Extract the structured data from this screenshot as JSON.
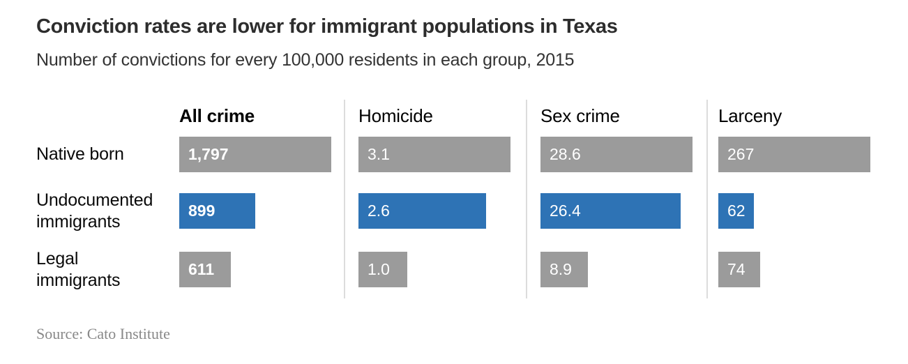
{
  "page": {
    "title": "Conviction rates are lower for immigrant populations in Texas",
    "subtitle": "Number of convictions for every 100,000 residents in each group, 2015",
    "source": "Source: Cato Institute"
  },
  "colors": {
    "bar_gray": "#9b9b9b",
    "bar_blue": "#2e73b5",
    "divider": "#dcdcdc",
    "value_text": "#ffffff"
  },
  "chart_data": {
    "type": "bar",
    "title": "Conviction rates are lower for immigrant populations in Texas",
    "subtitle": "Number of convictions for every 100,000 residents in each group, 2015",
    "source": "Source: Cato Institute",
    "unit": "convictions per 100,000 residents",
    "year": "2015",
    "orientation": "horizontal",
    "layout_hint": "small multiples; each panel scaled so its largest value spans the panel; value labels inside bars; light gray dividers between panels",
    "categories": [
      "Native born",
      "Undocumented immigrants",
      "Legal immigrants"
    ],
    "highlight_category": "Undocumented immigrants",
    "bar_color_by_row": [
      "gray",
      "blue",
      "gray"
    ],
    "panels": [
      {
        "label": "All crime",
        "emphasis": true,
        "values": [
          1797,
          899,
          611
        ],
        "value_labels": [
          "1,797",
          "899",
          "611"
        ]
      },
      {
        "label": "Homicide",
        "emphasis": false,
        "values": [
          3.1,
          2.6,
          1.0
        ],
        "value_labels": [
          "3.1",
          "2.6",
          "1.0"
        ]
      },
      {
        "label": "Sex crime",
        "emphasis": false,
        "values": [
          28.6,
          26.4,
          8.9
        ],
        "value_labels": [
          "28.6",
          "26.4",
          "8.9"
        ]
      },
      {
        "label": "Larceny",
        "emphasis": false,
        "values": [
          267,
          62,
          74
        ],
        "value_labels": [
          "267",
          "62",
          "74"
        ]
      }
    ]
  }
}
